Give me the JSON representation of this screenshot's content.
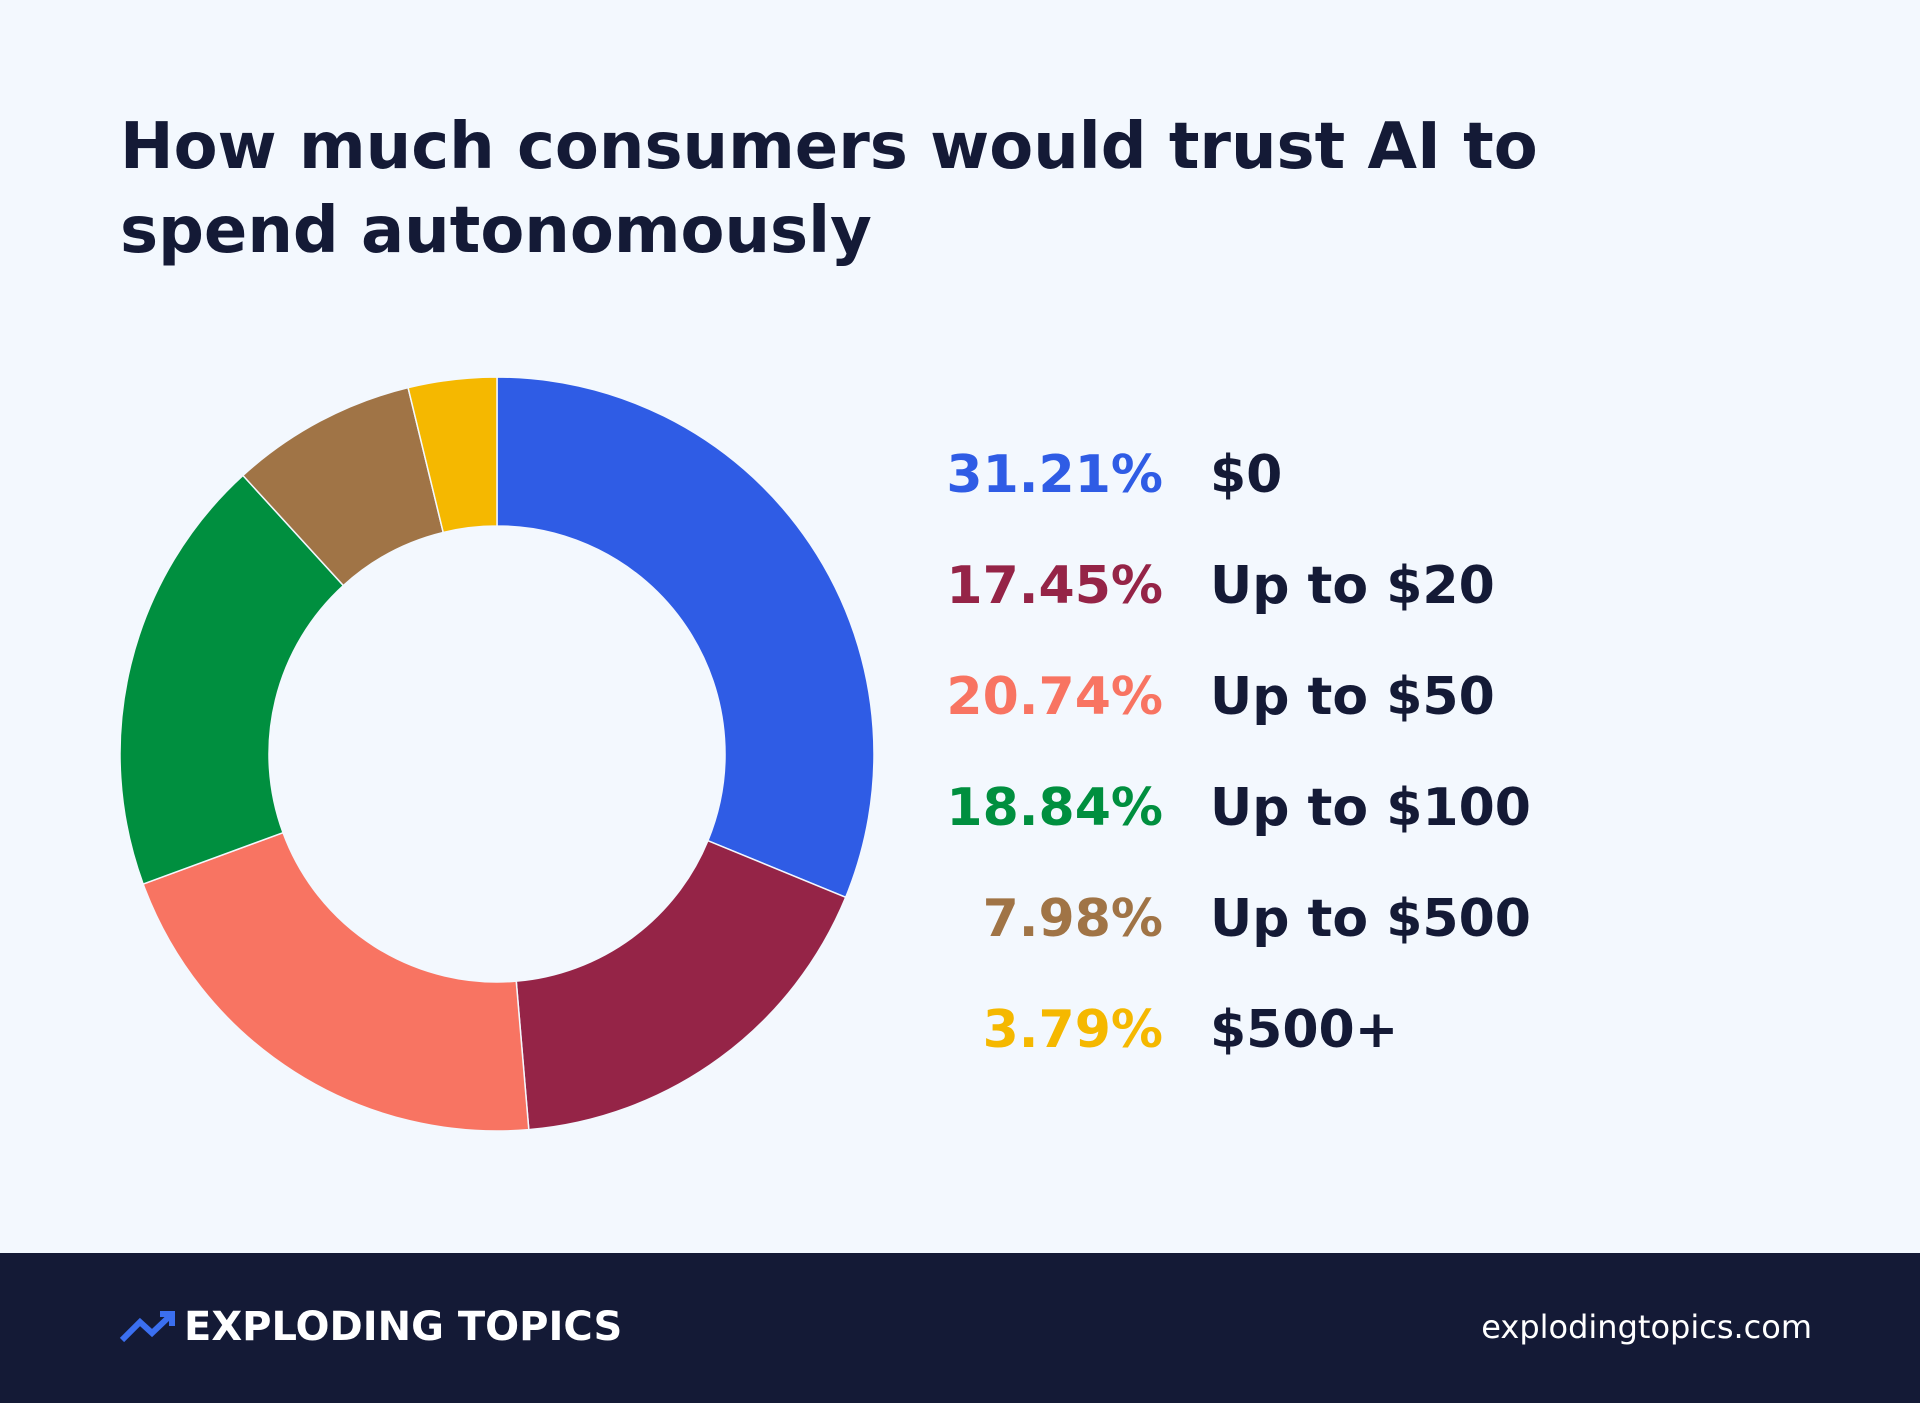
{
  "chart_data": {
    "type": "donut",
    "title": "How much consumers would trust AI to spend autonomously",
    "categories": [
      "$0",
      "Up to $20",
      "Up to $50",
      "Up to $100",
      "Up to $500",
      "$500+"
    ],
    "values": [
      31.21,
      17.45,
      20.74,
      18.84,
      7.98,
      3.79
    ],
    "value_labels": [
      "31.21%",
      "17.45%",
      "20.74%",
      "18.84%",
      "7.98%",
      "3.79%"
    ],
    "colors": [
      "#2f5ce5",
      "#952447",
      "#f87462",
      "#008f3f",
      "#a07446",
      "#f5b800"
    ]
  },
  "footer": {
    "brand": "EXPLODING TOPICS",
    "url": "explodingtopics.com"
  }
}
